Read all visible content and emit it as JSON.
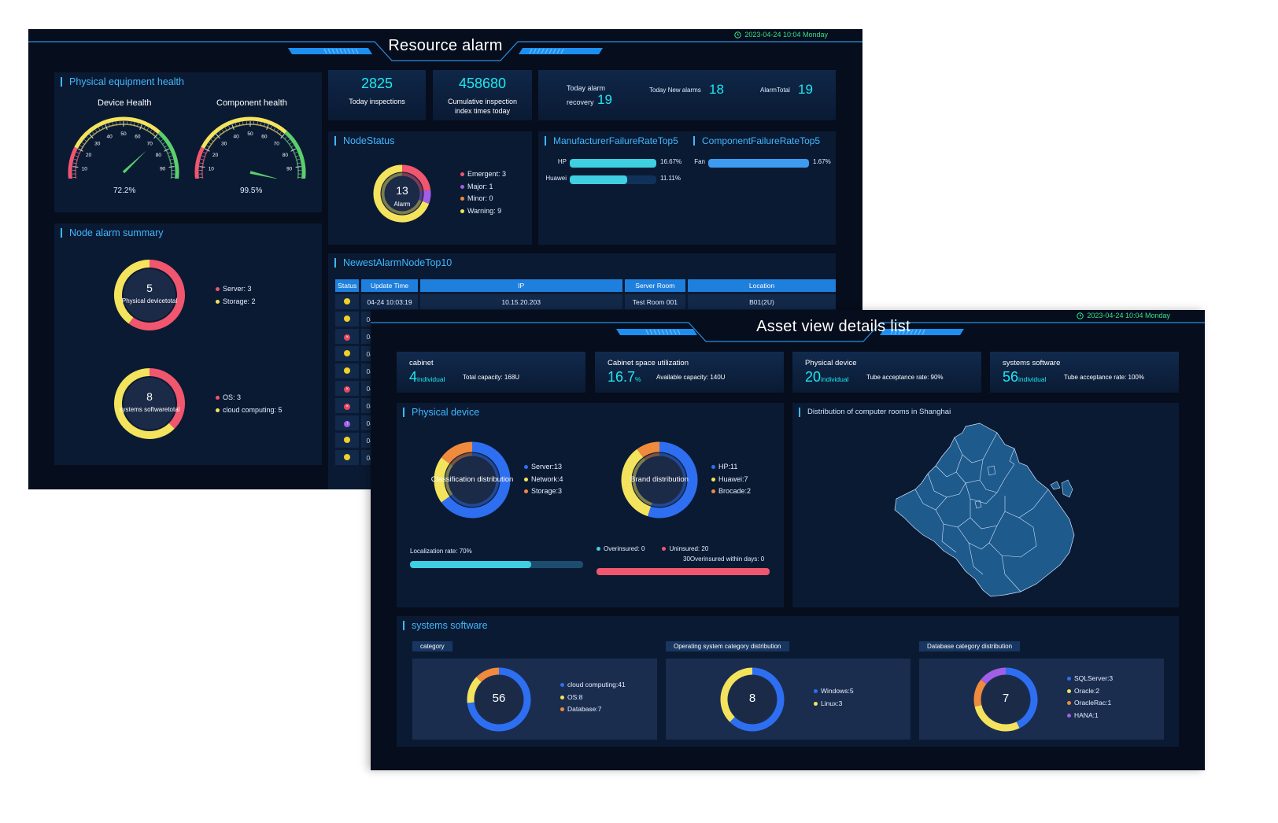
{
  "resource_alarm": {
    "title": "Resource alarm",
    "datetime": "2023-04-24 10:04 Monday",
    "physical_health": {
      "title": "Physical equipment health",
      "gauges": [
        {
          "label": "Device Health",
          "value": 72.2,
          "display": "72.2%",
          "ticks": [
            "0",
            "10",
            "20",
            "30",
            "40",
            "50",
            "60",
            "70",
            "80",
            "90",
            "100"
          ]
        },
        {
          "label": "Component health",
          "value": 99.5,
          "display": "99.5%",
          "ticks": [
            "0",
            "10",
            "20",
            "30",
            "40",
            "50",
            "60",
            "70",
            "80",
            "90",
            "100"
          ]
        }
      ]
    },
    "kpis": [
      {
        "value": "2825",
        "label": "Today inspections"
      },
      {
        "value": "458680",
        "label": "Cumulative inspection index times today"
      }
    ],
    "alarm_stats": {
      "recovery_label": "Today alarm recovery",
      "recovery_value": "19",
      "new_label": "Today New alarms",
      "new_value": "18",
      "total_label": "AlarmTotal",
      "total_value": "19"
    },
    "node_status": {
      "title": "NodeStatus",
      "center_value": "13",
      "center_label": "Alarm",
      "items": [
        {
          "label": "Emergent:  3",
          "value": 3,
          "color": "#f0566e"
        },
        {
          "label": "Major:  1",
          "value": 1,
          "color": "#a15fe6"
        },
        {
          "label": "Minor:  0",
          "value": 0,
          "color": "#f08a3c"
        },
        {
          "label": "Warning:  9",
          "value": 9,
          "color": "#f4e35c"
        }
      ]
    },
    "manufacturer_top5": {
      "title": "ManufacturerFailureRateTop5",
      "rows": [
        {
          "name": "HP",
          "value": 16.67,
          "display": "16.67%"
        },
        {
          "name": "Huawei",
          "value": 11.11,
          "display": "11.11%"
        }
      ],
      "max": 16.67
    },
    "component_top5": {
      "title": "ComponentFailureRateTop5",
      "rows": [
        {
          "name": "Fan",
          "value": 1.67,
          "display": "1.67%"
        }
      ],
      "max": 1.67
    },
    "node_alarm_summary": {
      "title": "Node alarm summary",
      "donuts": [
        {
          "value": "5",
          "label": "Physical devicetotal",
          "items": [
            {
              "label": "Server:  3",
              "value": 3,
              "color": "#f0566e"
            },
            {
              "label": "Storage:  2",
              "value": 2,
              "color": "#f4e35c"
            }
          ]
        },
        {
          "value": "8",
          "label": "systems softwaretotal",
          "items": [
            {
              "label": "OS:  3",
              "value": 3,
              "color": "#f0566e"
            },
            {
              "label": "cloud computing:  5",
              "value": 5,
              "color": "#f4e35c"
            }
          ]
        }
      ]
    },
    "newest_alarm": {
      "title": "NewestAlarmNodeTop10",
      "columns": [
        "Status",
        "Update Time",
        "IP",
        "Server Room",
        "Location"
      ],
      "first_row": {
        "status": "warning",
        "time": "04-24 10:03:19",
        "ip": "10.15.20.203",
        "room": "Test Room 001",
        "location": "B01(2U)"
      },
      "row_prefix": "04",
      "statuses": [
        "warning",
        "warning",
        "emergent",
        "warning",
        "warning",
        "emergent",
        "emergent",
        "major",
        "warning",
        "warning"
      ]
    }
  },
  "asset_view": {
    "title": "Asset view details list",
    "datetime": "2023-04-24 10:04 Monday",
    "cards": [
      {
        "title": "cabinet",
        "value": "4",
        "unit": "individual",
        "sub": "Total capacity:  168U"
      },
      {
        "title": "Cabinet space utilization",
        "value": "16.7",
        "unit": "%",
        "sub": "Available capacity:  140U"
      },
      {
        "title": "Physical device",
        "value": "20",
        "unit": "individual",
        "sub": "Tube acceptance rate:  90%"
      },
      {
        "title": "systems software",
        "value": "56",
        "unit": "individual",
        "sub": "Tube acceptance rate:  100%"
      }
    ],
    "physical_device": {
      "title": "Physical device",
      "classification": {
        "center": "Classification distribution",
        "items": [
          {
            "label": "Server:13",
            "value": 13,
            "color": "#2e6ff2"
          },
          {
            "label": "Network:4",
            "value": 4,
            "color": "#f4e35c"
          },
          {
            "label": "Storage:3",
            "value": 3,
            "color": "#f08a3c"
          }
        ]
      },
      "brand": {
        "center": "Brand distribution",
        "items": [
          {
            "label": "HP:11",
            "value": 11,
            "color": "#2e6ff2"
          },
          {
            "label": "Huawei:7",
            "value": 7,
            "color": "#f4e35c"
          },
          {
            "label": "Brocade:2",
            "value": 2,
            "color": "#f08a3c"
          }
        ]
      },
      "localization_label": "Localization rate:  70%",
      "localization_value": 70,
      "overinsured_label": "Overinsured:  0",
      "uninsured_label": "Uninsured:  20",
      "within_days_label": "30Overinsured within days:  0",
      "uninsured_fraction": 1.0
    },
    "map": {
      "title": "Distribution of computer rooms in Shanghai"
    },
    "systems_software": {
      "title": "systems software",
      "groups": [
        {
          "tag": "category",
          "center": "56",
          "items": [
            {
              "label": "cloud computing:41",
              "value": 41,
              "color": "#2e6ff2"
            },
            {
              "label": "OS:8",
              "value": 8,
              "color": "#f4e35c"
            },
            {
              "label": "Database:7",
              "value": 7,
              "color": "#f08a3c"
            }
          ]
        },
        {
          "tag": "Operating system category distribution",
          "center": "8",
          "items": [
            {
              "label": "Windows:5",
              "value": 5,
              "color": "#2e6ff2"
            },
            {
              "label": "Linux:3",
              "value": 3,
              "color": "#f4e35c"
            }
          ]
        },
        {
          "tag": "Database category distribution",
          "center": "7",
          "items": [
            {
              "label": "SQLServer:3",
              "value": 3,
              "color": "#2e6ff2"
            },
            {
              "label": "Oracle:2",
              "value": 2,
              "color": "#f4e35c"
            },
            {
              "label": "OracleRac:1",
              "value": 1,
              "color": "#f08a3c"
            },
            {
              "label": "HANA:1",
              "value": 1,
              "color": "#a15fe6"
            }
          ]
        }
      ]
    }
  }
}
